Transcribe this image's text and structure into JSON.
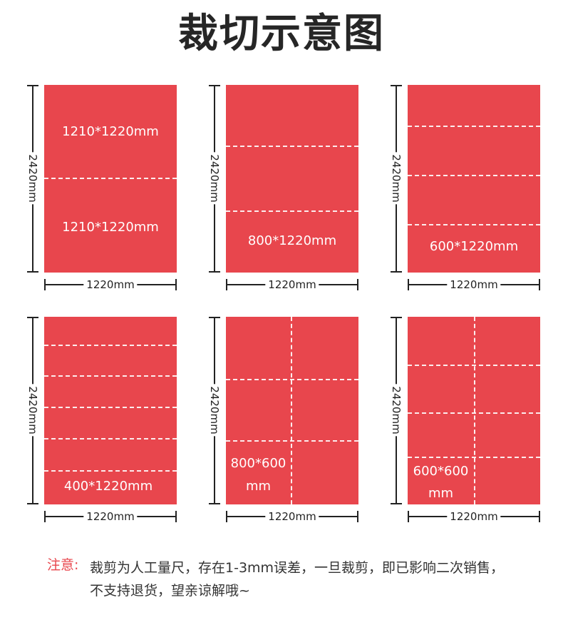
{
  "title": "裁切示意图",
  "dim_height": "2420mm",
  "dim_width": "1220mm",
  "panels": [
    {
      "h_cuts": [
        0.5
      ],
      "v_cuts": [],
      "labels": [
        "1210*1220mm",
        "1210*1220mm"
      ]
    },
    {
      "h_cuts": [
        0.33,
        0.67
      ],
      "v_cuts": [],
      "labels": [
        "800*1220mm"
      ]
    },
    {
      "h_cuts": [
        0.22,
        0.48,
        0.74
      ],
      "v_cuts": [],
      "labels": [
        "600*1220mm"
      ]
    },
    {
      "h_cuts": [
        0.155,
        0.32,
        0.485,
        0.65,
        0.82
      ],
      "v_cuts": [],
      "labels": [
        "400*1220mm"
      ]
    },
    {
      "h_cuts": [
        0.33,
        0.66
      ],
      "v_cuts": [
        0.49
      ],
      "labels": [
        "800*600",
        "mm"
      ]
    },
    {
      "h_cuts": [
        0.255,
        0.51,
        0.745
      ],
      "v_cuts": [
        0.51
      ],
      "labels": [
        "600*600",
        "mm"
      ]
    }
  ],
  "note": {
    "label": "注意:",
    "line1": "裁剪为人工量尺，存在1-3mm误差，一旦裁剪，即已影响二次销售，",
    "line2": "不支持退货，望亲谅解哦~"
  }
}
